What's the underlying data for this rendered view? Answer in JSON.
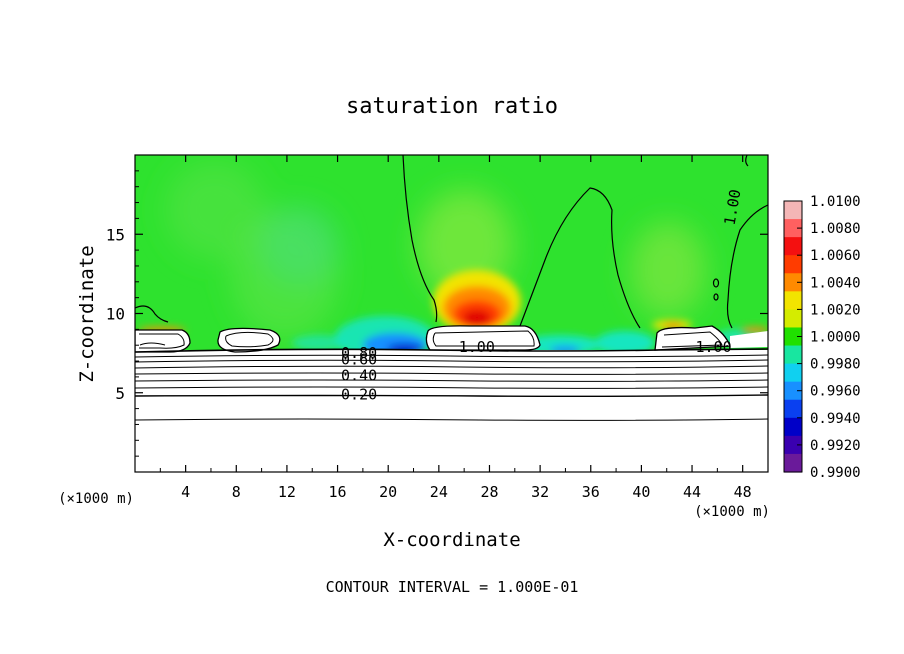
{
  "chart_data": {
    "type": "heatmap",
    "title": "saturation ratio",
    "xlabel": "X-coordinate",
    "ylabel": "Z-coordinate",
    "x_unit_left": "(×1000 m)",
    "x_unit_right": "(×1000 m)",
    "xlim": [
      0,
      50
    ],
    "ylim": [
      0,
      20
    ],
    "x_ticks": [
      4,
      8,
      12,
      16,
      20,
      24,
      28,
      32,
      36,
      40,
      44,
      48
    ],
    "y_ticks": [
      5,
      10,
      15
    ],
    "colorbar": {
      "labels": [
        "1.0100",
        "1.0080",
        "1.0060",
        "1.0040",
        "1.0020",
        "1.0000",
        "0.9980",
        "0.9960",
        "0.9940",
        "0.9920",
        "0.9900"
      ],
      "colors": [
        "#f4b6b6",
        "#ff6060",
        "#f41010",
        "#ff3c00",
        "#ff8a00",
        "#f2e400",
        "#d4ec00",
        "#20e000",
        "#18e6a0",
        "#10d0f0",
        "#1890ff",
        "#0a40f0",
        "#0000c8",
        "#3a00b0",
        "#6a1a9a"
      ]
    },
    "contour_labels": [
      {
        "text": "0.80",
        "x": 17.7,
        "z": 7.5
      },
      {
        "text": "0.60",
        "x": 17.7,
        "z": 7.1
      },
      {
        "text": "0.40",
        "x": 17.7,
        "z": 6.1
      },
      {
        "text": "0.20",
        "x": 17.7,
        "z": 4.9
      },
      {
        "text": "1.00",
        "x": 27.0,
        "z": 7.9
      },
      {
        "text": "1.00",
        "x": 45.7,
        "z": 7.9
      },
      {
        "text": "1.00",
        "x": 47.2,
        "z": 16.7
      }
    ],
    "footer": "CONTOUR INTERVAL = 1.000E-01"
  }
}
